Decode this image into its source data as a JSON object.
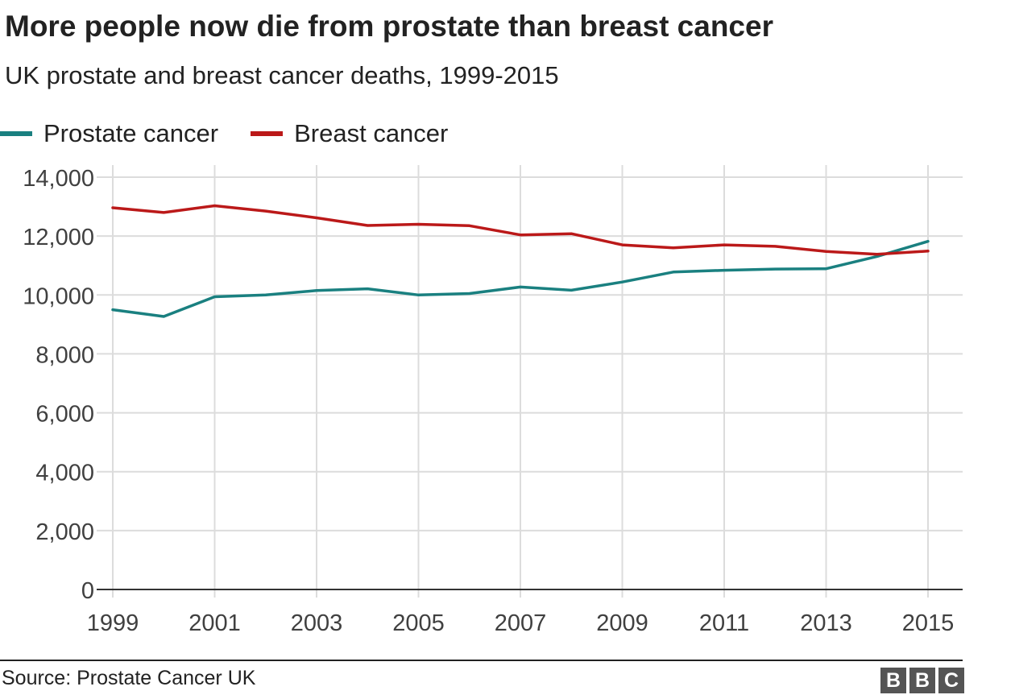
{
  "header": {
    "title": "More people now die from prostate than breast cancer",
    "subtitle": "UK prostate and breast cancer deaths, 1999-2015"
  },
  "legend": [
    {
      "label": "Prostate cancer",
      "color": "#1a8080"
    },
    {
      "label": "Breast cancer",
      "color": "#bb1919"
    }
  ],
  "footer": {
    "source": "Source: Prostate Cancer UK",
    "logo_letters": [
      "B",
      "B",
      "C"
    ]
  },
  "chart_data": {
    "type": "line",
    "x": [
      1999,
      2000,
      2001,
      2002,
      2003,
      2004,
      2005,
      2006,
      2007,
      2008,
      2009,
      2010,
      2011,
      2012,
      2013,
      2014,
      2015
    ],
    "series": [
      {
        "name": "Prostate cancer",
        "color": "#1a8080",
        "values": [
          9500,
          9270,
          9940,
          10000,
          10150,
          10210,
          10000,
          10050,
          10270,
          10160,
          10440,
          10780,
          10840,
          10880,
          10890,
          11310,
          11820
        ]
      },
      {
        "name": "Breast cancer",
        "color": "#bb1919",
        "values": [
          12960,
          12800,
          13030,
          12850,
          12620,
          12360,
          12400,
          12350,
          12040,
          12080,
          11700,
          11600,
          11700,
          11650,
          11480,
          11380,
          11490
        ]
      }
    ],
    "xticks": [
      "1999",
      "2001",
      "2003",
      "2005",
      "2007",
      "2009",
      "2011",
      "2013",
      "2015"
    ],
    "yticks": [
      0,
      2000,
      4000,
      6000,
      8000,
      10000,
      12000,
      14000
    ],
    "ytick_labels": [
      "0",
      "2,000",
      "4,000",
      "6,000",
      "8,000",
      "10,000",
      "12,000",
      "14,000"
    ],
    "xlim": [
      1999,
      2015
    ],
    "ylim": [
      0,
      14000
    ],
    "grid": true,
    "legend_position": "top-left"
  }
}
